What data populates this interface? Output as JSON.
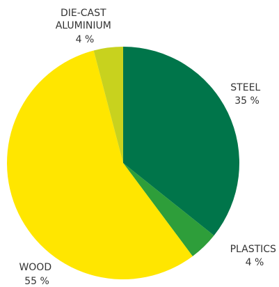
{
  "chart_data": {
    "type": "pie",
    "slices": [
      {
        "label": "STEEL",
        "value": 35,
        "value_label": "35 %",
        "color": "#00754a"
      },
      {
        "label": "PLASTICS",
        "value": 4,
        "value_label": "4 %",
        "color": "#2e9e3a"
      },
      {
        "label": "WOOD",
        "value": 55,
        "value_label": "55 %",
        "color": "#ffe600"
      },
      {
        "label": "DIE-CAST ALUMINIUM",
        "label_lines": [
          "DIE-CAST",
          "ALUMINIUM"
        ],
        "value": 4,
        "value_label": "4 %",
        "color": "#c8d21e"
      }
    ],
    "start_angle": "top",
    "direction": "clockwise"
  }
}
